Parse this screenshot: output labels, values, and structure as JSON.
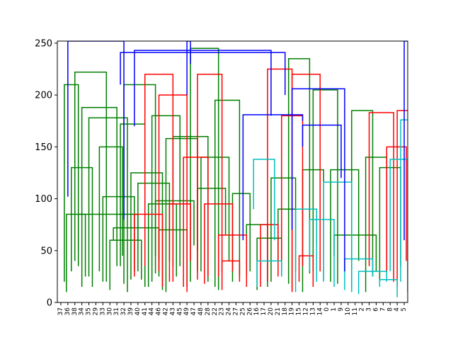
{
  "chart_data": {
    "type": "dendrogram",
    "title": "",
    "xlabel": "",
    "ylabel": "",
    "ylim": [
      0,
      252
    ],
    "grid": false,
    "y_ticks": [
      0,
      50,
      100,
      150,
      200,
      250
    ],
    "leaf_labels": [
      "37",
      "36",
      "38",
      "34",
      "35",
      "29",
      "33",
      "30",
      "31",
      "32",
      "39",
      "40",
      "41",
      "44",
      "46",
      "42",
      "43",
      "45",
      "49",
      "47",
      "48",
      "28",
      "22",
      "23",
      "24",
      "27",
      "25",
      "26",
      "16",
      "17",
      "20",
      "21",
      "18",
      "19",
      "15",
      "12",
      "13",
      "14",
      "0",
      "1",
      "9",
      "10",
      "11",
      "2",
      "3",
      "6",
      "7",
      "8",
      "4",
      "5"
    ],
    "colors": {
      "green": "#008000",
      "red": "#ff0000",
      "blue": "#0000ff",
      "cyan": "#00bfbf"
    },
    "links": [
      {
        "color": "green",
        "x1": 0.5,
        "x2": 2.5,
        "y1a": 20,
        "y1b": 35,
        "top": 210
      },
      {
        "color": "green",
        "x1": 1.5,
        "x2": 4.5,
        "y1a": 30,
        "y1b": 15,
        "top": 130
      },
      {
        "color": "green",
        "x1": 0.8,
        "x2": 3.5,
        "y1a": 10,
        "y1b": 25,
        "top": 85
      },
      {
        "color": "green",
        "x1": 2.0,
        "x2": 6.5,
        "y1a": 40,
        "y1b": 20,
        "top": 222
      },
      {
        "color": "green",
        "x1": 3.0,
        "x2": 8.0,
        "y1a": 15,
        "y1b": 35,
        "top": 188
      },
      {
        "color": "green",
        "x1": 4.0,
        "x2": 9.5,
        "y1a": 25,
        "y1b": 10,
        "top": 178
      },
      {
        "color": "green",
        "x1": 5.5,
        "x2": 8.8,
        "y1a": 30,
        "y1b": 45,
        "top": 150
      },
      {
        "color": "green",
        "x1": 6.0,
        "x2": 10.5,
        "y1a": 20,
        "y1b": 30,
        "top": 102
      },
      {
        "color": "green",
        "x1": 7.0,
        "x2": 11.5,
        "y1a": 12,
        "y1b": 22,
        "top": 60
      },
      {
        "color": "green",
        "x1": 8.5,
        "x2": 12.0,
        "y1a": 35,
        "y1b": 15,
        "top": 172
      },
      {
        "color": "green",
        "x1": 9.0,
        "x2": 13.5,
        "y1a": 18,
        "y1b": 28,
        "top": 210
      },
      {
        "color": "green",
        "x1": 10.0,
        "x2": 14.5,
        "y1a": 22,
        "y1b": 12,
        "top": 125
      },
      {
        "color": "green",
        "x1": 11.0,
        "x2": 15.5,
        "y1a": 30,
        "y1b": 40,
        "top": 115
      },
      {
        "color": "green",
        "x1": 12.5,
        "x2": 16.5,
        "y1a": 15,
        "y1b": 25,
        "top": 95
      },
      {
        "color": "green",
        "x1": 13.0,
        "x2": 17.0,
        "y1a": 20,
        "y1b": 35,
        "top": 180
      },
      {
        "color": "green",
        "x1": 14.0,
        "x2": 18.0,
        "y1a": 25,
        "y1b": 15,
        "top": 70
      },
      {
        "color": "green",
        "x1": 15.0,
        "x2": 19.5,
        "y1a": 10,
        "y1b": 30,
        "top": 158
      },
      {
        "color": "green",
        "x1": 16.0,
        "x2": 21.0,
        "y1a": 35,
        "y1b": 20,
        "top": 160
      },
      {
        "color": "green",
        "x1": 18.5,
        "x2": 22.5,
        "y1a": 20,
        "y1b": 12,
        "top": 245
      },
      {
        "color": "green",
        "x1": 20.0,
        "x2": 24.0,
        "y1a": 30,
        "y1b": 40,
        "top": 140
      },
      {
        "color": "green",
        "x1": 22.0,
        "x2": 25.5,
        "y1a": 15,
        "y1b": 25,
        "top": 195
      },
      {
        "color": "green",
        "x1": 24.5,
        "x2": 27.0,
        "y1a": 20,
        "y1b": 30,
        "top": 105
      },
      {
        "color": "green",
        "x1": 26.5,
        "x2": 29.5,
        "y1a": 25,
        "y1b": 15,
        "top": 75
      },
      {
        "color": "green",
        "x1": 28.0,
        "x2": 31.5,
        "y1a": 12,
        "y1b": 32,
        "top": 62
      },
      {
        "color": "green",
        "x1": 30.0,
        "x2": 33.5,
        "y1a": 20,
        "y1b": 30,
        "top": 120
      },
      {
        "color": "green",
        "x1": 32.5,
        "x2": 35.5,
        "y1a": 18,
        "y1b": 28,
        "top": 235
      },
      {
        "color": "green",
        "x1": 34.5,
        "x2": 37.5,
        "y1a": 10,
        "y1b": 22,
        "top": 128
      },
      {
        "color": "green",
        "x1": 36.0,
        "x2": 39.5,
        "y1a": 30,
        "y1b": 18,
        "top": 205
      },
      {
        "color": "green",
        "x1": 38.5,
        "x2": 42.5,
        "y1a": 20,
        "y1b": 40,
        "top": 128
      },
      {
        "color": "green",
        "x1": 41.5,
        "x2": 44.5,
        "y1a": 15,
        "y1b": 25,
        "top": 185
      },
      {
        "color": "green",
        "x1": 43.5,
        "x2": 46.5,
        "y1a": 10,
        "y1b": 30,
        "top": 140
      },
      {
        "color": "green",
        "x1": 45.5,
        "x2": 48.5,
        "y1a": 20,
        "y1b": 35,
        "top": 130
      },
      {
        "color": "green",
        "x1": 2.5,
        "x2": 11.0,
        "y1a": 50,
        "y1b": 60,
        "top": 85
      },
      {
        "color": "green",
        "x1": 13.5,
        "x2": 19.0,
        "y1a": 45,
        "y1b": 55,
        "top": 98
      },
      {
        "color": "green",
        "x1": 7.5,
        "x2": 14.0,
        "y1a": 60,
        "y1b": 40,
        "top": 72
      },
      {
        "color": "green",
        "x1": 19.5,
        "x2": 23.5,
        "y1a": 50,
        "y1b": 65,
        "top": 110
      },
      {
        "color": "green",
        "x1": 31.0,
        "x2": 36.5,
        "y1a": 40,
        "y1b": 55,
        "top": 90
      },
      {
        "color": "green",
        "x1": 39.0,
        "x2": 45.0,
        "y1a": 45,
        "y1b": 30,
        "top": 65
      },
      {
        "color": "red",
        "x1": 10.5,
        "x2": 14.5,
        "y1a": 25,
        "y1b": 15,
        "top": 85
      },
      {
        "color": "red",
        "x1": 12.0,
        "x2": 16.0,
        "y1a": 35,
        "y1b": 20,
        "top": 220
      },
      {
        "color": "red",
        "x1": 14.0,
        "x2": 18.0,
        "y1a": 30,
        "y1b": 10,
        "top": 200
      },
      {
        "color": "red",
        "x1": 15.5,
        "x2": 18.5,
        "y1a": 20,
        "y1b": 40,
        "top": 95
      },
      {
        "color": "red",
        "x1": 17.5,
        "x2": 21.0,
        "y1a": 15,
        "y1b": 25,
        "top": 140
      },
      {
        "color": "red",
        "x1": 19.5,
        "x2": 23.0,
        "y1a": 22,
        "y1b": 12,
        "top": 220
      },
      {
        "color": "red",
        "x1": 20.5,
        "x2": 24.5,
        "y1a": 18,
        "y1b": 30,
        "top": 95
      },
      {
        "color": "red",
        "x1": 22.5,
        "x2": 26.5,
        "y1a": 25,
        "y1b": 15,
        "top": 65
      },
      {
        "color": "red",
        "x1": 23.0,
        "x2": 25.5,
        "y1a": 30,
        "y1b": 20,
        "top": 40
      },
      {
        "color": "red",
        "x1": 28.5,
        "x2": 31.0,
        "y1a": 15,
        "y1b": 25,
        "top": 75
      },
      {
        "color": "red",
        "x1": 29.5,
        "x2": 33.0,
        "y1a": 20,
        "y1b": 12,
        "top": 225
      },
      {
        "color": "red",
        "x1": 31.5,
        "x2": 34.5,
        "y1a": 25,
        "y1b": 35,
        "top": 180
      },
      {
        "color": "red",
        "x1": 33.0,
        "x2": 37.0,
        "y1a": 10,
        "y1b": 30,
        "top": 220
      },
      {
        "color": "red",
        "x1": 34.0,
        "x2": 36.0,
        "y1a": 20,
        "y1b": 15,
        "top": 45
      },
      {
        "color": "red",
        "x1": 44.0,
        "x2": 47.5,
        "y1a": 35,
        "y1b": 20,
        "top": 183
      },
      {
        "color": "red",
        "x1": 46.5,
        "x2": 49.3,
        "y1a": 25,
        "y1b": 40,
        "top": 150
      },
      {
        "color": "red",
        "x1": 48.0,
        "x2": 49.6,
        "y1a": 15,
        "y1b": 30,
        "top": 185
      },
      {
        "color": "cyan",
        "x1": 27.5,
        "x2": 30.5,
        "y1a": 90,
        "y1b": 60,
        "top": 138
      },
      {
        "color": "cyan",
        "x1": 28.0,
        "x2": 31.5,
        "y1a": 15,
        "y1b": 25,
        "top": 40
      },
      {
        "color": "cyan",
        "x1": 33.5,
        "x2": 36.5,
        "y1a": 10,
        "y1b": 20,
        "top": 90
      },
      {
        "color": "cyan",
        "x1": 35.5,
        "x2": 39.0,
        "y1a": 30,
        "y1b": 15,
        "top": 80
      },
      {
        "color": "cyan",
        "x1": 37.5,
        "x2": 41.5,
        "y1a": 20,
        "y1b": 10,
        "top": 116
      },
      {
        "color": "cyan",
        "x1": 40.5,
        "x2": 44.5,
        "y1a": 12,
        "y1b": 25,
        "top": 42
      },
      {
        "color": "cyan",
        "x1": 42.5,
        "x2": 46.5,
        "y1a": 8,
        "y1b": 20,
        "top": 30
      },
      {
        "color": "cyan",
        "x1": 45.5,
        "x2": 48.0,
        "y1a": 15,
        "y1b": 5,
        "top": 22
      },
      {
        "color": "cyan",
        "x1": 47.0,
        "x2": 49.5,
        "y1a": 30,
        "y1b": 10,
        "top": 138
      },
      {
        "color": "cyan",
        "x1": 48.5,
        "x2": 49.8,
        "y1a": 20,
        "y1b": 45,
        "top": 176
      },
      {
        "color": "blue",
        "x1": 1.0,
        "x2": 9.0,
        "y1a": 102,
        "y1b": 80,
        "top": 252
      },
      {
        "color": "blue",
        "x1": 8.5,
        "x2": 32.0,
        "y1a": 210,
        "y1b": 200,
        "top": 241
      },
      {
        "color": "blue",
        "x1": 10.5,
        "x2": 30.0,
        "y1a": 170,
        "y1b": 180,
        "top": 243
      },
      {
        "color": "blue",
        "x1": 18.0,
        "x2": 18.5,
        "y1a": 200,
        "y1b": 230,
        "top": 252
      },
      {
        "color": "blue",
        "x1": 26.0,
        "x2": 34.5,
        "y1a": 60,
        "y1b": 175,
        "top": 181
      },
      {
        "color": "blue",
        "x1": 34.5,
        "x2": 40.0,
        "y1a": 150,
        "y1b": 120,
        "top": 171
      },
      {
        "color": "blue",
        "x1": 33.0,
        "x2": 40.5,
        "y1a": 70,
        "y1b": 30,
        "top": 206
      },
      {
        "color": "blue",
        "x1": 49.0,
        "x2": 49.7,
        "y1a": 60,
        "y1b": 90,
        "top": 252
      }
    ]
  }
}
